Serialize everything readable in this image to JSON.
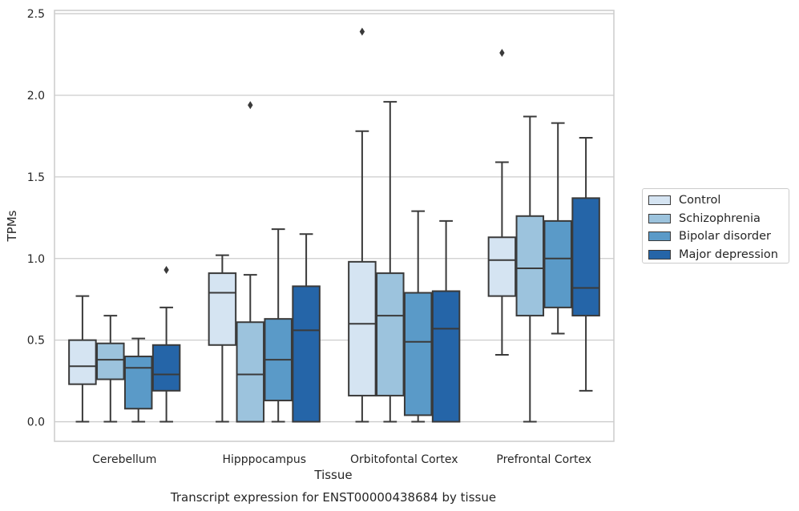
{
  "chart_data": {
    "type": "box",
    "title": "Transcript expression for ENST00000438684 by tissue",
    "xlabel": "Tissue",
    "ylabel": "TPMs",
    "ylim": [
      -0.12,
      2.52
    ],
    "yticks": [
      "0.0",
      "0.5",
      "1.0",
      "1.5",
      "2.0",
      "2.5"
    ],
    "grid": true,
    "legend_position": "right",
    "categories": [
      "Cerebellum",
      "Hipppocampus",
      "Orbitofontal Cortex",
      "Prefrontal Cortex"
    ],
    "series": [
      {
        "name": "Control",
        "color": "#d5e4f2",
        "boxes": [
          {
            "min": 0.0,
            "q1": 0.23,
            "median": 0.34,
            "q3": 0.5,
            "max": 0.77,
            "outliers": []
          },
          {
            "min": 0.0,
            "q1": 0.47,
            "median": 0.79,
            "q3": 0.91,
            "max": 1.02,
            "outliers": []
          },
          {
            "min": 0.0,
            "q1": 0.16,
            "median": 0.6,
            "q3": 0.98,
            "max": 1.78,
            "outliers": [
              2.39
            ]
          },
          {
            "min": 0.41,
            "q1": 0.77,
            "median": 0.99,
            "q3": 1.13,
            "max": 1.59,
            "outliers": [
              2.26
            ]
          }
        ]
      },
      {
        "name": "Schizophrenia",
        "color": "#9cc3dd",
        "boxes": [
          {
            "min": 0.0,
            "q1": 0.26,
            "median": 0.38,
            "q3": 0.48,
            "max": 0.65,
            "outliers": []
          },
          {
            "min": 0.0,
            "q1": 0.0,
            "median": 0.29,
            "q3": 0.61,
            "max": 0.9,
            "outliers": [
              1.94
            ]
          },
          {
            "min": 0.0,
            "q1": 0.16,
            "median": 0.65,
            "q3": 0.91,
            "max": 1.96,
            "outliers": []
          },
          {
            "min": 0.0,
            "q1": 0.65,
            "median": 0.94,
            "q3": 1.26,
            "max": 1.87,
            "outliers": []
          }
        ]
      },
      {
        "name": "Bipolar disorder",
        "color": "#5a9ac8",
        "boxes": [
          {
            "min": 0.0,
            "q1": 0.08,
            "median": 0.33,
            "q3": 0.4,
            "max": 0.51,
            "outliers": []
          },
          {
            "min": 0.0,
            "q1": 0.13,
            "median": 0.38,
            "q3": 0.63,
            "max": 1.18,
            "outliers": []
          },
          {
            "min": 0.0,
            "q1": 0.04,
            "median": 0.49,
            "q3": 0.79,
            "max": 1.29,
            "outliers": []
          },
          {
            "min": 0.54,
            "q1": 0.7,
            "median": 1.0,
            "q3": 1.23,
            "max": 1.83,
            "outliers": []
          }
        ]
      },
      {
        "name": "Major depression",
        "color": "#2565a8",
        "boxes": [
          {
            "min": 0.0,
            "q1": 0.19,
            "median": 0.29,
            "q3": 0.47,
            "max": 0.7,
            "outliers": [
              0.93
            ]
          },
          {
            "min": 0.0,
            "q1": 0.0,
            "median": 0.56,
            "q3": 0.83,
            "max": 1.15,
            "outliers": []
          },
          {
            "min": 0.0,
            "q1": 0.0,
            "median": 0.57,
            "q3": 0.8,
            "max": 1.23,
            "outliers": []
          },
          {
            "min": 0.19,
            "q1": 0.65,
            "median": 0.82,
            "q3": 1.37,
            "max": 1.74,
            "outliers": []
          }
        ]
      }
    ]
  }
}
